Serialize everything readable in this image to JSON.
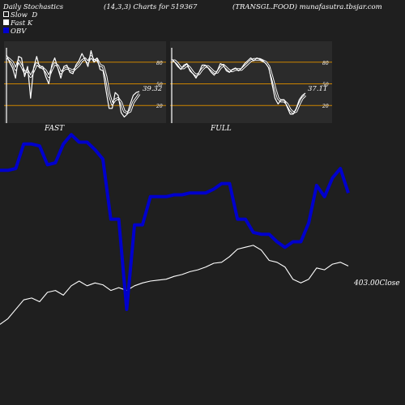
{
  "header": {
    "title": "Daily Stochastics",
    "params": "(14,3,3) Charts for 519367",
    "symbol": "(TRANSGL.FOOD) munafasutra.tbsjar.com"
  },
  "legend": [
    {
      "label": "Slow  D",
      "color": "#ffffff",
      "swatch": "hollow"
    },
    {
      "label": "Fast K",
      "color": "#ffffff",
      "swatch": "filled"
    },
    {
      "label": "OBV",
      "color": "#0000cc",
      "swatch": "filled"
    }
  ],
  "colors": {
    "background": "#1f1f1f",
    "panel": "#2b2b2b",
    "level_line": "#cc8400",
    "obv": "#0000cc",
    "price": "#ffffff"
  },
  "panels": [
    {
      "label": "FAST",
      "value_label": "39.32"
    },
    {
      "label": "FULL",
      "value_label": "37.11"
    }
  ],
  "close_label": "403.00Close",
  "chart_data": [
    {
      "type": "line",
      "title": "FAST",
      "ylim": [
        0,
        100
      ],
      "yticks": [
        20,
        50,
        80
      ],
      "levels": [
        20,
        50,
        80
      ],
      "series": [
        {
          "name": "Slow  D",
          "values": [
            87,
            84,
            80,
            70,
            82,
            75,
            66,
            68,
            60,
            68,
            78,
            74,
            72,
            68,
            60,
            70,
            78,
            75,
            65,
            70,
            72,
            70,
            68,
            72,
            76,
            82,
            85,
            80,
            88,
            82,
            84,
            76,
            74,
            60,
            36,
            22,
            28,
            30,
            24,
            12,
            10,
            12,
            24,
            30,
            36
          ]
        },
        {
          "name": "Fast K",
          "values": [
            90,
            80,
            72,
            58,
            88,
            86,
            60,
            74,
            30,
            72,
            88,
            72,
            74,
            60,
            50,
            76,
            86,
            72,
            58,
            74,
            76,
            66,
            64,
            76,
            82,
            92,
            84,
            74,
            96,
            80,
            86,
            70,
            68,
            40,
            16,
            16,
            38,
            34,
            10,
            4,
            8,
            22,
            34,
            38,
            39.32
          ]
        }
      ]
    },
    {
      "type": "line",
      "title": "FULL",
      "ylim": [
        0,
        100
      ],
      "yticks": [
        20,
        50,
        80
      ],
      "levels": [
        20,
        50,
        80
      ],
      "series": [
        {
          "name": "Slow  D",
          "values": [
            82,
            82,
            78,
            72,
            72,
            76,
            72,
            66,
            62,
            64,
            70,
            74,
            74,
            70,
            66,
            66,
            72,
            76,
            72,
            68,
            68,
            70,
            70,
            70,
            74,
            78,
            82,
            84,
            84,
            84,
            82,
            80,
            74,
            60,
            44,
            30,
            26,
            26,
            22,
            14,
            10,
            12,
            22,
            30,
            34
          ]
        },
        {
          "name": "Fast K",
          "values": [
            84,
            80,
            74,
            70,
            76,
            78,
            68,
            64,
            58,
            66,
            76,
            76,
            72,
            66,
            62,
            68,
            78,
            76,
            68,
            66,
            70,
            72,
            68,
            72,
            78,
            82,
            86,
            82,
            86,
            84,
            82,
            78,
            72,
            50,
            30,
            22,
            28,
            28,
            18,
            8,
            8,
            16,
            28,
            34,
            37.11
          ]
        }
      ]
    },
    {
      "type": "line",
      "title": "",
      "ylim": [
        0,
        100
      ],
      "series": [
        {
          "name": "OBV",
          "values": [
            74,
            74,
            75,
            88,
            88,
            87,
            77,
            78,
            88,
            93,
            89,
            89,
            85,
            80,
            48,
            48,
            0,
            45,
            45,
            60,
            60,
            60,
            61,
            61,
            62,
            62,
            62,
            64,
            67,
            67,
            48,
            48,
            41,
            40,
            40,
            36,
            33,
            36,
            36,
            46,
            66,
            60,
            70,
            75,
            62
          ]
        },
        {
          "name": "Price",
          "values": [
            4,
            10,
            20,
            30,
            32,
            28,
            38,
            40,
            35,
            45,
            50,
            45,
            48,
            46,
            40,
            43,
            40,
            45,
            48,
            50,
            51,
            52,
            55,
            57,
            60,
            62,
            65,
            69,
            70,
            76,
            84,
            86,
            88,
            83,
            72,
            70,
            65,
            52,
            48,
            52,
            64,
            62,
            68,
            70,
            66
          ]
        }
      ]
    }
  ]
}
